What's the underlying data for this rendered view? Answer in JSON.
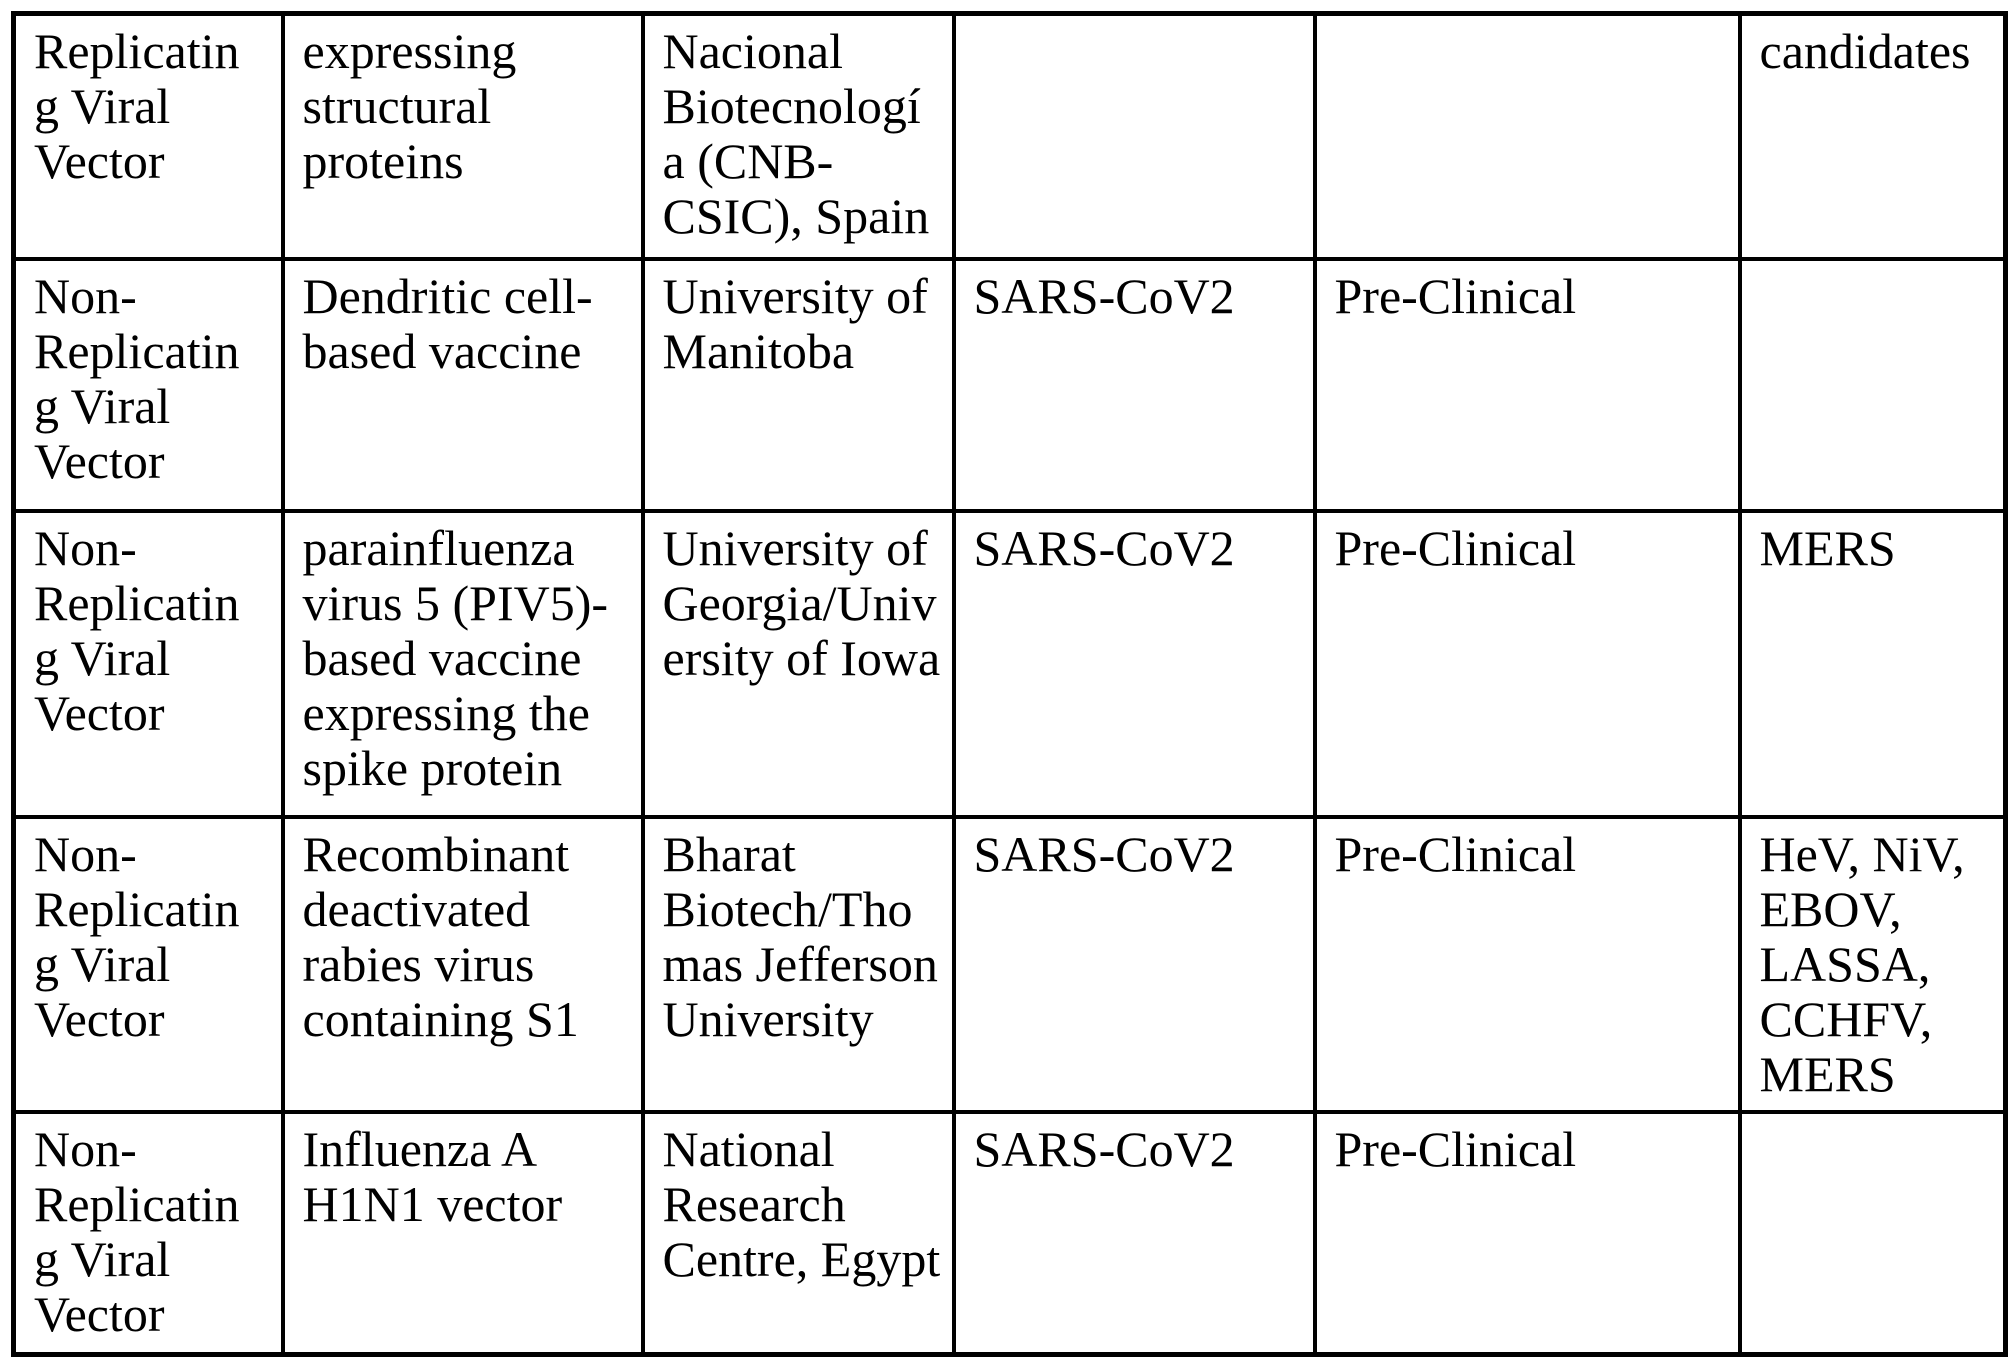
{
  "document": {
    "kind": "vaccine-candidates-table-page",
    "text_color": "#000000",
    "grid_color": "#000000",
    "background_color": "#ffffff"
  },
  "table": {
    "rows": [
      {
        "cells": [
          "Replicatin\ng Viral\nVector",
          "expressing\nstructural\nproteins",
          "Nacional\nBiotecnologí\na (CNB-\nCSIC), Spain",
          "",
          "",
          "candidates"
        ]
      },
      {
        "cells": [
          "Non-\nReplicatin\ng Viral\nVector",
          "Dendritic cell-\nbased vaccine",
          "University of\nManitoba",
          "SARS-CoV2",
          "Pre-Clinical",
          ""
        ]
      },
      {
        "cells": [
          "Non-\nReplicatin\ng Viral\nVector",
          "parainfluenza\nvirus 5 (PIV5)-\nbased vaccine\nexpressing the\nspike protein",
          "University of\nGeorgia/Univ\nersity of Iowa",
          "SARS-CoV2",
          "Pre-Clinical",
          "MERS"
        ]
      },
      {
        "cells": [
          "Non-\nReplicatin\ng Viral\nVector",
          "Recombinant\ndeactivated\nrabies virus\ncontaining S1",
          "Bharat\nBiotech/Tho\nmas Jefferson\nUniversity",
          "SARS-CoV2",
          "Pre-Clinical",
          "HeV, NiV,\nEBOV,\nLASSA,\nCCHFV,\nMERS"
        ]
      },
      {
        "cells": [
          "Non-\nReplicatin\ng Viral\nVector",
          "Influenza A\nH1N1 vector",
          "National\nResearch\nCentre, Egypt",
          "SARS-CoV2",
          "Pre-Clinical",
          ""
        ]
      }
    ]
  }
}
